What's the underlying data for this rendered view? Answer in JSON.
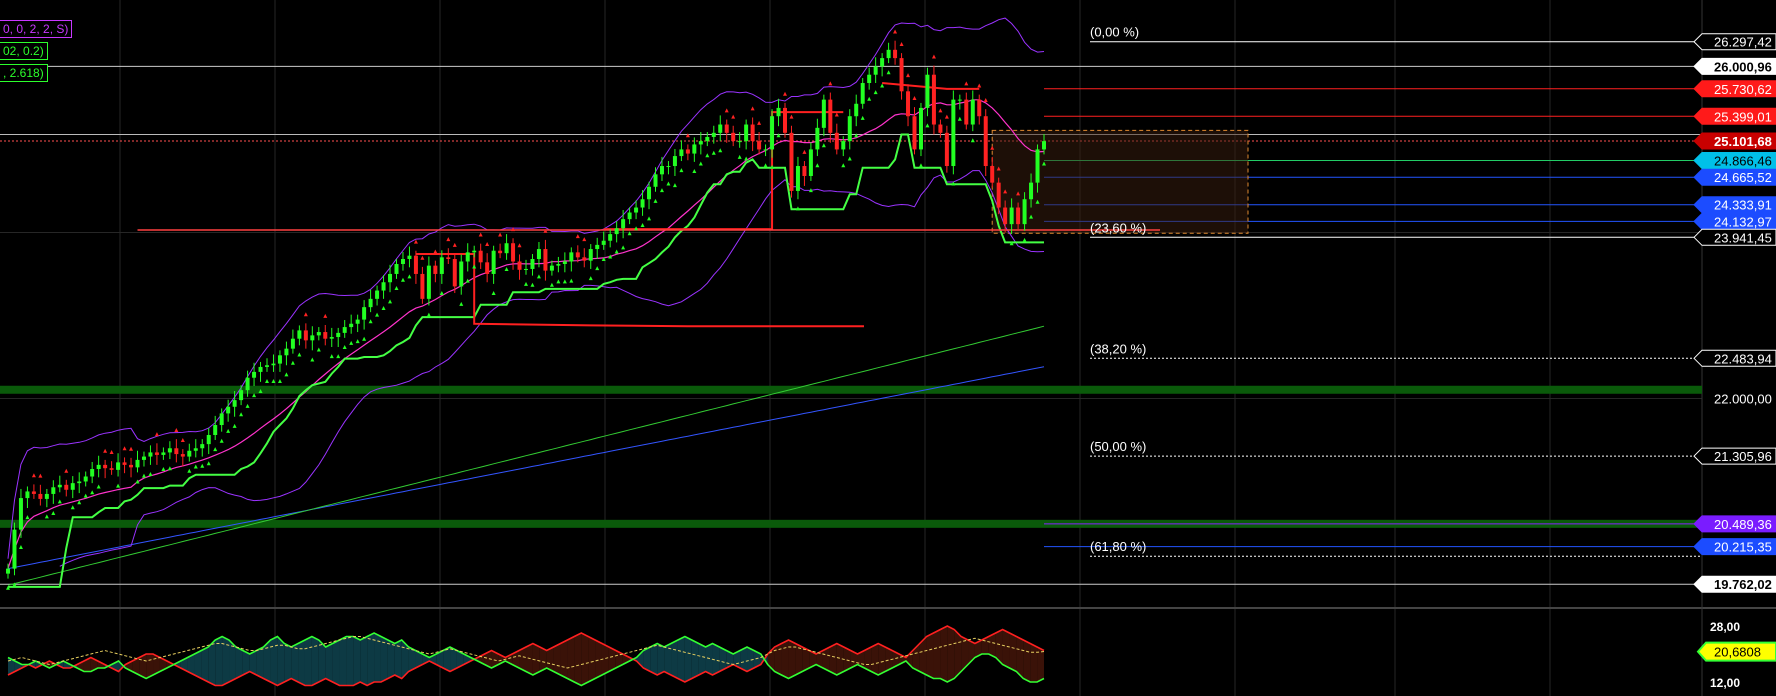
{
  "legend": {
    "line1": "0, 0, 2, 2, S)",
    "line2": "02, 0.2)",
    "line3": ", 2.618)"
  },
  "colors": {
    "background": "#000000",
    "candle_up": "#22ff22",
    "candle_down": "#ff2222",
    "bollinger": "#9a33ff",
    "mid_band": "#ff33cc",
    "supertrend_up": "#44ff44",
    "supertrend_down": "#ff2020",
    "ma_green": "#33cc33",
    "ma_blue": "#3355ff",
    "support_band": "#0a5a0a"
  },
  "chart_data": [
    {
      "type": "line",
      "panel": "price",
      "ylim": [
        19500,
        26800
      ],
      "price_labels": [
        {
          "value": 26297.42,
          "text": "26.297,42",
          "style": "plain"
        },
        {
          "value": 26000.96,
          "text": "26.000,96",
          "style": "white"
        },
        {
          "value": 25730.62,
          "text": "25.730,62",
          "style": "red"
        },
        {
          "value": 25399.01,
          "text": "25.399,01",
          "style": "red"
        },
        {
          "value": 25101.68,
          "text": "25.101,68",
          "style": "last"
        },
        {
          "value": 24866.46,
          "text": "24.866,46",
          "style": "cyan"
        },
        {
          "value": 24665.52,
          "text": "24.665,52",
          "style": "blue"
        },
        {
          "value": 24333.91,
          "text": "24.333,91",
          "style": "blue"
        },
        {
          "value": 24132.97,
          "text": "24.132,97",
          "style": "blue"
        },
        {
          "value": 23941.45,
          "text": "23.941,45",
          "style": "plain"
        },
        {
          "value": 22483.94,
          "text": "22.483,94",
          "style": "plain"
        },
        {
          "value": 22000.0,
          "text": "22.000,00",
          "style": "axis"
        },
        {
          "value": 21305.96,
          "text": "21.305,96",
          "style": "plain"
        },
        {
          "value": 20489.36,
          "text": "20.489,36",
          "style": "purple"
        },
        {
          "value": 20215.35,
          "text": "20.215,35",
          "style": "blue"
        },
        {
          "value": 19762.02,
          "text": "19.762,02",
          "style": "white"
        }
      ],
      "fib_levels": [
        {
          "label": "(0,00 %)",
          "value": 26297.42
        },
        {
          "label": "(23,60 %)",
          "value": 23941.45
        },
        {
          "label": "(38,20 %)",
          "value": 22483.94
        },
        {
          "label": "(50,00 %)",
          "value": 21305.96
        },
        {
          "label": "(61,80 %)",
          "value": 20100
        }
      ],
      "support_bands": [
        22105,
        20490
      ],
      "close": [
        19950,
        20420,
        20800,
        20880,
        20850,
        20790,
        20850,
        20930,
        20960,
        20900,
        20980,
        21000,
        21060,
        21150,
        21200,
        21160,
        21140,
        21230,
        21200,
        21170,
        21260,
        21300,
        21350,
        21320,
        21350,
        21400,
        21330,
        21300,
        21370,
        21400,
        21450,
        21560,
        21680,
        21820,
        21900,
        21980,
        22100,
        22250,
        22320,
        22380,
        22400,
        22420,
        22520,
        22600,
        22720,
        22820,
        22700,
        22760,
        22800,
        22720,
        22740,
        22790,
        22860,
        22900,
        22950,
        23100,
        23200,
        23300,
        23400,
        23500,
        23620,
        23680,
        23720,
        23500,
        23200,
        23600,
        23500,
        23700,
        23680,
        23350,
        23650,
        23760,
        23780,
        23640,
        23500,
        23780,
        23750,
        23870,
        23650,
        23550,
        23560,
        23680,
        23800,
        23540,
        23600,
        23620,
        23650,
        23760,
        23700,
        23660,
        23800,
        23850,
        23900,
        23980,
        24050,
        24160,
        24240,
        24300,
        24400,
        24550,
        24700,
        24800,
        24800,
        24920,
        25000,
        24950,
        25060,
        25100,
        25150,
        25200,
        25300,
        25200,
        25100,
        25100,
        25300,
        25100,
        25000,
        25000,
        25400,
        25500,
        25200,
        24500,
        24800,
        24680,
        25000,
        25260,
        25600,
        25200,
        25000,
        25100,
        25400,
        25550,
        25800,
        25900,
        26000,
        26100,
        26200,
        26100,
        25700,
        25400,
        25000,
        25500,
        25900,
        25300,
        25200,
        24800,
        25600,
        25600,
        25300,
        25600,
        25400,
        24800,
        24600,
        24300,
        24100,
        24300,
        24100,
        24400,
        24600,
        25000,
        25100
      ]
    },
    {
      "type": "area",
      "panel": "oscillator",
      "ylim": [
        8,
        32
      ],
      "axis_labels": [
        {
          "value": 28,
          "text": "28,00"
        },
        {
          "value": 12,
          "text": "12,00"
        }
      ],
      "current": {
        "value": 20.6808,
        "text": "20,6808"
      },
      "di_plus": [
        19,
        18,
        17,
        17,
        18,
        17,
        16,
        17,
        18,
        17,
        16,
        15,
        15,
        16,
        16,
        17,
        18,
        16,
        15,
        14,
        13,
        14,
        15,
        16,
        17,
        18,
        19,
        20,
        21,
        22,
        24,
        25,
        24,
        22,
        21,
        20,
        21,
        22,
        24,
        25,
        23,
        22,
        23,
        24,
        25,
        24,
        22,
        23,
        24,
        25,
        25,
        24,
        25,
        26,
        25,
        24,
        23,
        24,
        22,
        21,
        20,
        19,
        20,
        21,
        22,
        21,
        20,
        19,
        18,
        17,
        16,
        17,
        18,
        17,
        16,
        15,
        14,
        15,
        16,
        15,
        14,
        13,
        12,
        11,
        12,
        13,
        14,
        15,
        16,
        17,
        18,
        19,
        21,
        22,
        23,
        22,
        23,
        24,
        25,
        24,
        23,
        22,
        23,
        22,
        21,
        20,
        21,
        22,
        21,
        20,
        17,
        15,
        14,
        13,
        14,
        15,
        16,
        17,
        16,
        15,
        14,
        15,
        16,
        17,
        16,
        15,
        14,
        15,
        16,
        17,
        18,
        16,
        15,
        14,
        13,
        13,
        12,
        13,
        15,
        17,
        19,
        20,
        20,
        19,
        17,
        16,
        15,
        13,
        12,
        12,
        13
      ],
      "di_minus": [
        14,
        15,
        16,
        17,
        16,
        17,
        18,
        17,
        16,
        16,
        17,
        18,
        19,
        18,
        17,
        16,
        15,
        17,
        18,
        19,
        20,
        20,
        19,
        18,
        17,
        16,
        15,
        14,
        13,
        12,
        11,
        11,
        12,
        13,
        14,
        15,
        14,
        13,
        12,
        11,
        12,
        13,
        12,
        11,
        11,
        12,
        13,
        12,
        11,
        11,
        11,
        12,
        11,
        12,
        12,
        13,
        14,
        13,
        15,
        16,
        17,
        18,
        17,
        16,
        15,
        16,
        17,
        18,
        19,
        20,
        21,
        20,
        19,
        20,
        21,
        22,
        23,
        22,
        21,
        22,
        23,
        24,
        25,
        26,
        25,
        24,
        23,
        22,
        21,
        20,
        19,
        18,
        16,
        15,
        14,
        15,
        14,
        13,
        12,
        13,
        14,
        15,
        14,
        15,
        16,
        17,
        16,
        15,
        16,
        17,
        20,
        22,
        23,
        24,
        23,
        22,
        21,
        20,
        21,
        22,
        23,
        22,
        21,
        20,
        21,
        22,
        23,
        22,
        21,
        20,
        19,
        21,
        23,
        25,
        26,
        27,
        28,
        27,
        25,
        24,
        23,
        24,
        25,
        26,
        27,
        26,
        25,
        24,
        23,
        22,
        21
      ],
      "adx": [
        18,
        18.5,
        19,
        18.5,
        18,
        17.5,
        17,
        17.5,
        18,
        18.5,
        19,
        19.5,
        20,
        20.5,
        21,
        20.5,
        20,
        19.5,
        19,
        18.5,
        18,
        18.5,
        19,
        19.5,
        20,
        20.5,
        21,
        21.5,
        22,
        22.5,
        23,
        23,
        22.5,
        22,
        21.5,
        21,
        21,
        21.5,
        22,
        22.5,
        22.5,
        22,
        21.5,
        21.5,
        22,
        22.5,
        23,
        23.5,
        24,
        24.5,
        25,
        25,
        24.5,
        24,
        23.5,
        23,
        22.5,
        22,
        21.5,
        21,
        20.5,
        20,
        20.5,
        21,
        21.5,
        21,
        20.5,
        20,
        19.5,
        19,
        18.5,
        18,
        18.5,
        19,
        19.5,
        19,
        18.5,
        18,
        17.5,
        17,
        16.5,
        16,
        16.5,
        17,
        17.5,
        18,
        18.5,
        19,
        19.5,
        20,
        20.5,
        21,
        21.5,
        22,
        22.5,
        22,
        21.5,
        21,
        20.5,
        20,
        19.5,
        19,
        18.5,
        18,
        17.5,
        17,
        17.5,
        18,
        18.5,
        19,
        20,
        21,
        21.5,
        22,
        22,
        21.5,
        21,
        20.5,
        20,
        19.5,
        19,
        18.5,
        18,
        17.5,
        17,
        17,
        17.5,
        18,
        18.5,
        19,
        19.5,
        20,
        20.5,
        21,
        21.5,
        22,
        22.5,
        23,
        23.5,
        24,
        24.5,
        24,
        23.5,
        23,
        22.5,
        22,
        21.5,
        21,
        20.5,
        20.5,
        20.7
      ]
    }
  ]
}
